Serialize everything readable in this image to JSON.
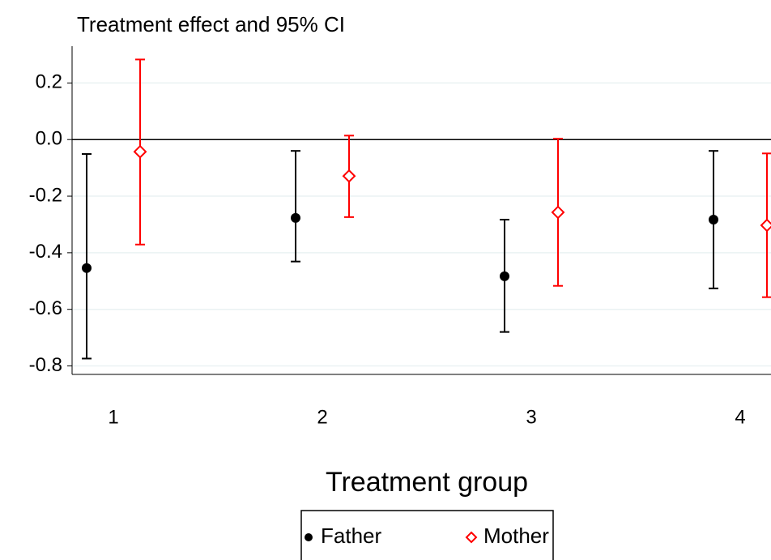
{
  "chart_data": {
    "type": "errorbar",
    "title": "Treatment effect and 95% CI",
    "x_label": "Treatment group",
    "categories": [
      "1",
      "2",
      "3",
      "4"
    ],
    "series": [
      {
        "name": "Father",
        "color": "#000000",
        "marker": "circle",
        "values": [
          -0.454,
          -0.277,
          -0.483,
          -0.283
        ],
        "low": [
          -0.774,
          -0.431,
          -0.68,
          -0.526
        ],
        "high": [
          -0.051,
          -0.04,
          -0.283,
          -0.04
        ]
      },
      {
        "name": "Mother",
        "color": "#ff0000",
        "marker": "diamond",
        "values": [
          -0.043,
          -0.129,
          -0.257,
          -0.303
        ],
        "low": [
          -0.371,
          -0.274,
          -0.517,
          -0.557
        ],
        "high": [
          0.283,
          0.014,
          0.003,
          -0.049
        ]
      }
    ],
    "ylim": [
      -0.83,
      0.33
    ],
    "yticks": [
      0.2,
      {
        "value": 0,
        "label": "0.0"
      },
      -0.2,
      -0.4,
      -0.6,
      -0.8
    ],
    "grid": true,
    "zero_line": true,
    "legend": "bottom"
  }
}
